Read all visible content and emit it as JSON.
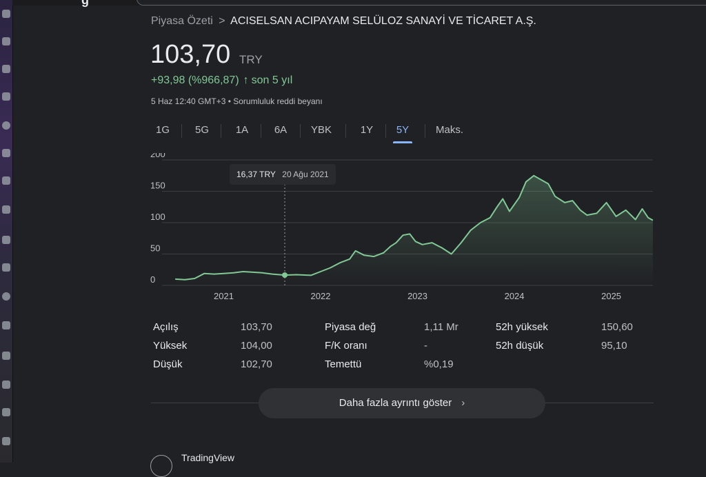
{
  "header": {
    "browser_glyph": "g"
  },
  "breadcrumb": {
    "root": "Piyasa Özeti",
    "separator": ">",
    "current": "ACISELSAN ACIPAYAM SELÜLOZ SANAYİ VE TİCARET A.Ş."
  },
  "quote": {
    "price": "103,70",
    "currency": "TRY",
    "change": "+93,98 (%966,87)",
    "change_arrow": "↑",
    "change_period": "son 5 yıl",
    "timestamp": "5 Haz 12:40 GMT+3 • Sorumluluk reddi beyanı",
    "up_color": "#81c995"
  },
  "tabs": [
    {
      "label": "1G",
      "active": false
    },
    {
      "label": "5G",
      "active": false
    },
    {
      "label": "1A",
      "active": false
    },
    {
      "label": "6A",
      "active": false
    },
    {
      "label": "YBK",
      "active": false
    },
    {
      "label": "1Y",
      "active": false
    },
    {
      "label": "5Y",
      "active": true
    },
    {
      "label": "Maks.",
      "active": false
    }
  ],
  "tooltip": {
    "price": "16,37 TRY",
    "date": "20 Ağu 2021"
  },
  "chart_data": {
    "type": "area",
    "title": "",
    "xlabel": "",
    "ylabel": "",
    "ylim": [
      0,
      200
    ],
    "xlim": [
      2020.42,
      2025.43
    ],
    "yticks": [
      "0",
      "50",
      "100",
      "150",
      "200"
    ],
    "xticks": [
      {
        "label": "2021",
        "x": 2021.0
      },
      {
        "label": "2022",
        "x": 2022.0
      },
      {
        "label": "2023",
        "x": 2023.0
      },
      {
        "label": "2024",
        "x": 2024.0
      },
      {
        "label": "2025",
        "x": 2025.0
      }
    ],
    "grid": true,
    "line_color": "#81c995",
    "highlight": {
      "x": 2021.63,
      "y": 16.37
    },
    "series": [
      {
        "values": [
          [
            2020.5,
            10
          ],
          [
            2020.6,
            9
          ],
          [
            2020.7,
            11
          ],
          [
            2020.8,
            19
          ],
          [
            2020.9,
            18
          ],
          [
            2021.0,
            19
          ],
          [
            2021.1,
            20
          ],
          [
            2021.2,
            22
          ],
          [
            2021.3,
            21
          ],
          [
            2021.4,
            20
          ],
          [
            2021.5,
            18
          ],
          [
            2021.63,
            16.37
          ],
          [
            2021.75,
            17
          ],
          [
            2021.9,
            16
          ],
          [
            2022.0,
            22
          ],
          [
            2022.1,
            28
          ],
          [
            2022.2,
            36
          ],
          [
            2022.3,
            42
          ],
          [
            2022.36,
            55
          ],
          [
            2022.45,
            48
          ],
          [
            2022.55,
            46
          ],
          [
            2022.65,
            52
          ],
          [
            2022.72,
            62
          ],
          [
            2022.78,
            68
          ],
          [
            2022.85,
            80
          ],
          [
            2022.92,
            82
          ],
          [
            2022.98,
            70
          ],
          [
            2023.05,
            65
          ],
          [
            2023.15,
            68
          ],
          [
            2023.25,
            60
          ],
          [
            2023.35,
            50
          ],
          [
            2023.45,
            68
          ],
          [
            2023.55,
            88
          ],
          [
            2023.65,
            100
          ],
          [
            2023.75,
            108
          ],
          [
            2023.82,
            125
          ],
          [
            2023.88,
            138
          ],
          [
            2023.95,
            118
          ],
          [
            2024.05,
            140
          ],
          [
            2024.12,
            165
          ],
          [
            2024.2,
            175
          ],
          [
            2024.28,
            168
          ],
          [
            2024.35,
            162
          ],
          [
            2024.42,
            142
          ],
          [
            2024.52,
            132
          ],
          [
            2024.6,
            135
          ],
          [
            2024.68,
            120
          ],
          [
            2024.75,
            112
          ],
          [
            2024.85,
            115
          ],
          [
            2024.95,
            132
          ],
          [
            2025.05,
            110
          ],
          [
            2025.15,
            120
          ],
          [
            2025.25,
            105
          ],
          [
            2025.32,
            122
          ],
          [
            2025.38,
            108
          ],
          [
            2025.43,
            103.7
          ]
        ]
      }
    ]
  },
  "stats": {
    "columns": [
      [
        {
          "label": "Açılış",
          "value": "103,70"
        },
        {
          "label": "Yüksek",
          "value": "104,00"
        },
        {
          "label": "Düşük",
          "value": "102,70"
        }
      ],
      [
        {
          "label": "Piyasa değ",
          "value": "1,11 Mr"
        },
        {
          "label": "F/K oranı",
          "value": "-"
        },
        {
          "label": "Temettü",
          "value": "%0,19"
        }
      ],
      [
        {
          "label": "52h yüksek",
          "value": "150,60"
        },
        {
          "label": "52h düşük",
          "value": "95,10"
        }
      ]
    ]
  },
  "more_button": {
    "label": "Daha fazla ayrıntı göster",
    "chevron": "›"
  },
  "footer": {
    "tradingview": "TradingView"
  }
}
